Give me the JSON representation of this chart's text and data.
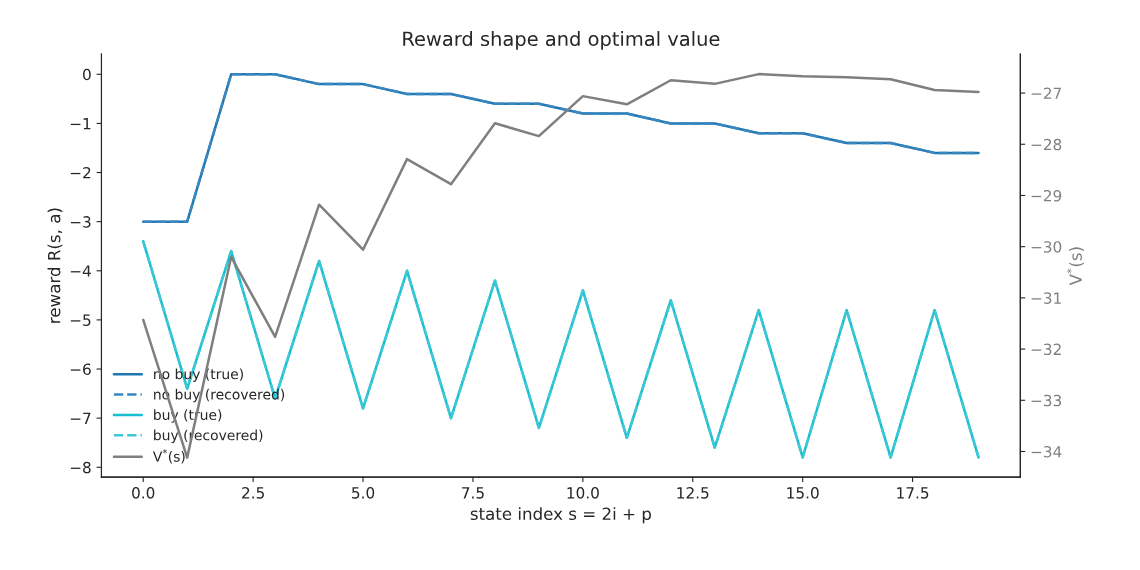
{
  "chart_data": {
    "type": "line",
    "title": "Reward shape and optimal value",
    "xlabel": "state index s = 2i + p",
    "ylabel": "reward R(s, a)",
    "y2label": "V$^{*}$(s)",
    "x": [
      0,
      1,
      2,
      3,
      4,
      5,
      6,
      7,
      8,
      9,
      10,
      11,
      12,
      13,
      14,
      15,
      16,
      17,
      18,
      19
    ],
    "series": [
      {
        "name": "no buy (true)",
        "color": "#1f77b4",
        "line_style": "solid",
        "values": [
          -3,
          -3,
          0,
          0,
          -0.2,
          -0.2,
          -0.4,
          -0.4,
          -0.6,
          -0.6,
          -0.8,
          -0.8,
          -1,
          -1,
          -1.2,
          -1.2,
          -1.4,
          -1.4,
          -1.6,
          -1.6
        ]
      },
      {
        "name": "no buy (recovered)",
        "color": "#3a87c0",
        "line_style": "dashed",
        "values": [
          -3,
          -3,
          0,
          0,
          -0.2,
          -0.2,
          -0.4,
          -0.4,
          -0.6,
          -0.6,
          -0.8,
          -0.8,
          -1,
          -1,
          -1.2,
          -1.2,
          -1.4,
          -1.4,
          -1.6,
          -1.6
        ]
      },
      {
        "name": "buy (true)",
        "color": "#17becf",
        "line_style": "solid",
        "values": [
          -3.4,
          -6.4,
          -3.6,
          -6.6,
          -3.8,
          -6.8,
          -4.0,
          -7.0,
          -4.2,
          -7.2,
          -4.4,
          -7.4,
          -4.6,
          -7.6,
          -4.8,
          -7.8,
          -4.8,
          -7.8,
          -4.8,
          -7.8
        ]
      },
      {
        "name": "buy (recovered)",
        "color": "#3cc8d6",
        "line_style": "dashed",
        "values": [
          -3.4,
          -6.4,
          -3.6,
          -6.6,
          -3.8,
          -6.8,
          -4.0,
          -7.0,
          -4.2,
          -7.2,
          -4.4,
          -7.4,
          -4.6,
          -7.6,
          -4.8,
          -7.8,
          -4.8,
          -7.8,
          -4.8,
          -7.8
        ]
      },
      {
        "name": "V$^{*}$(s)",
        "color": "#7f7f7f",
        "line_style": "solid",
        "axis": "y2",
        "values": [
          -31.43,
          -34.12,
          -30.2,
          -31.76,
          -29.18,
          -30.06,
          -28.29,
          -28.78,
          -27.59,
          -27.84,
          -27.06,
          -27.22,
          -26.75,
          -26.82,
          -26.63,
          -26.67,
          -26.69,
          -26.73,
          -26.94,
          -26.98
        ]
      }
    ],
    "xlim": [
      -0.95,
      19.95
    ],
    "xticks": [
      {
        "value": 0,
        "label": "0.0"
      },
      {
        "value": 2.5,
        "label": "2.5"
      },
      {
        "value": 5,
        "label": "5.0"
      },
      {
        "value": 7.5,
        "label": "7.5"
      },
      {
        "value": 10,
        "label": "10.0"
      },
      {
        "value": 12.5,
        "label": "12.5"
      },
      {
        "value": 15,
        "label": "15.0"
      },
      {
        "value": 17.5,
        "label": "17.5"
      }
    ],
    "ylim": [
      -8.2,
      0.41
    ],
    "yticks": [
      {
        "value": -8,
        "label": "−8"
      },
      {
        "value": -7,
        "label": "−7"
      },
      {
        "value": -6,
        "label": "−6"
      },
      {
        "value": -5,
        "label": "−5"
      },
      {
        "value": -4,
        "label": "−4"
      },
      {
        "value": -3,
        "label": "−3"
      },
      {
        "value": -2,
        "label": "−2"
      },
      {
        "value": -1,
        "label": "−1"
      },
      0
    ],
    "y2lim": [
      -34.5,
      -26.24
    ],
    "y2ticks": [
      {
        "value": -34,
        "label": "−34"
      },
      {
        "value": -33,
        "label": "−33"
      },
      {
        "value": -32,
        "label": "−32"
      },
      {
        "value": -31,
        "label": "−31"
      },
      {
        "value": -30,
        "label": "−30"
      },
      {
        "value": -29,
        "label": "−29"
      },
      {
        "value": -28,
        "label": "−28"
      },
      {
        "value": -27,
        "label": "−27"
      }
    ],
    "legend": "lower left",
    "grid": false
  }
}
